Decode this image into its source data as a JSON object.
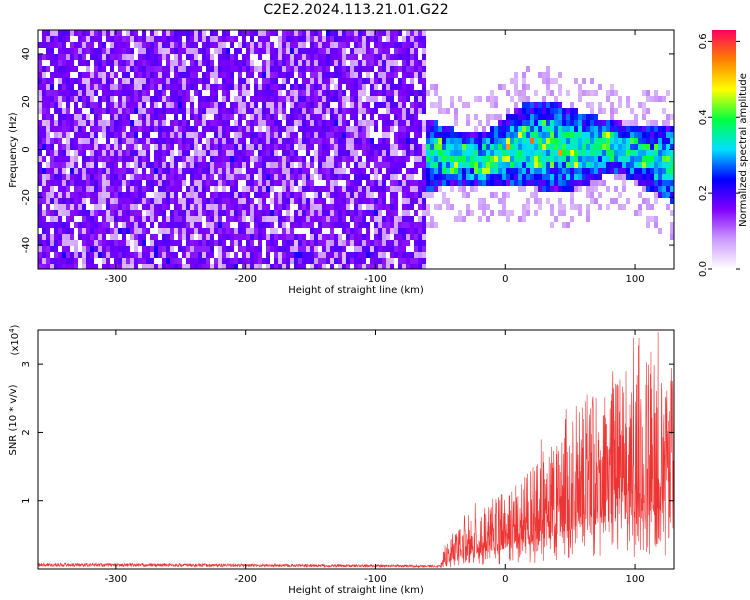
{
  "title": "C2E2.2024.113.21.01.G22",
  "colors": {
    "background": "#ffffff",
    "snr_line": "#ee3333",
    "axis": "#000000",
    "colormap": [
      "#ffffff",
      "#cc99ff",
      "#7f00ff",
      "#0000ff",
      "#00e0ff",
      "#00ff40",
      "#ffff00",
      "#ff8000",
      "#ff0060"
    ]
  },
  "chart_data": [
    {
      "type": "heatmap",
      "xlabel": "Height of straight line (km)",
      "ylabel": "Frequency (Hz)",
      "xlim": [
        -360,
        130
      ],
      "ylim": [
        -50,
        50
      ],
      "x_ticks": [
        -300,
        -200,
        -100,
        0,
        100
      ],
      "y_ticks": [
        -40,
        -20,
        0,
        20,
        40
      ],
      "colorbar": {
        "label": "Normalized spectral amplitude",
        "range": [
          0.0,
          0.63
        ],
        "ticks": [
          "0.0",
          "0.2",
          "0.4",
          "0.6"
        ]
      },
      "regions": [
        {
          "name": "noise",
          "x_range": [
            -360,
            -63
          ],
          "freq_range": [
            -50,
            50
          ],
          "amplitude": 0.05
        },
        {
          "name": "signal",
          "x_range": [
            -63,
            130
          ],
          "freq_center": 0,
          "freq_halfwidth": 15,
          "amplitude_peak": 0.6
        }
      ]
    },
    {
      "type": "line",
      "xlabel": "Height of straight line (km)",
      "ylabel": "SNR (10 * v/v)",
      "multiplier_label": "(x10",
      "multiplier_exp": "4",
      "multiplier_close": ")",
      "xlim": [
        -360,
        130
      ],
      "ylim": [
        0,
        3.5
      ],
      "x_ticks": [
        -300,
        -200,
        -100,
        0,
        100
      ],
      "y_ticks": [
        1,
        2,
        3
      ],
      "envelope": [
        {
          "x": -360,
          "y": 0.09
        },
        {
          "x": -250,
          "y": 0.08
        },
        {
          "x": -150,
          "y": 0.07
        },
        {
          "x": -50,
          "y": 0.06
        },
        {
          "x": -45,
          "y": 0.4
        },
        {
          "x": -30,
          "y": 0.8
        },
        {
          "x": -10,
          "y": 1.0
        },
        {
          "x": 10,
          "y": 1.3
        },
        {
          "x": 30,
          "y": 1.7
        },
        {
          "x": 50,
          "y": 2.2
        },
        {
          "x": 70,
          "y": 2.6
        },
        {
          "x": 90,
          "y": 2.9
        },
        {
          "x": 110,
          "y": 3.1
        },
        {
          "x": 130,
          "y": 2.9
        }
      ]
    }
  ]
}
